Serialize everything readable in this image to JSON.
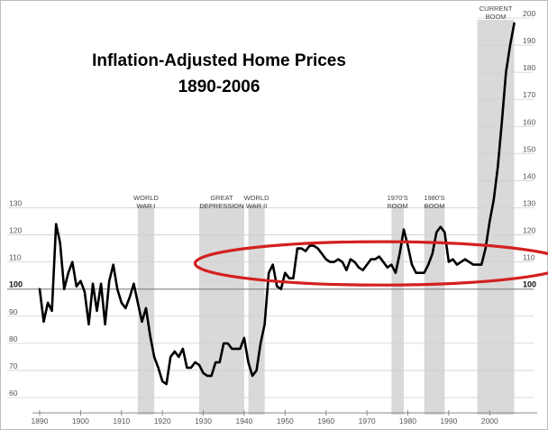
{
  "chart_data": {
    "type": "line",
    "title": "Inflation-Adjusted Home Prices",
    "subtitle": "1890-2006",
    "xlabel": "",
    "ylabel": "",
    "xlim": [
      1890,
      2006
    ],
    "ylim": [
      60,
      200
    ],
    "grid": true,
    "x_ticks": [
      1890,
      1900,
      1910,
      1920,
      1930,
      1940,
      1950,
      1960,
      1970,
      1980,
      1990,
      2000
    ],
    "y_ticks_left": [
      60,
      70,
      80,
      90,
      100,
      110,
      120,
      130
    ],
    "y_ticks_right": [
      100,
      110,
      120,
      130,
      140,
      150,
      160,
      170,
      180,
      190,
      200
    ],
    "baseline": 100,
    "highlight_ellipse": {
      "x_center": 1973.5,
      "y_center": 109.5,
      "x_halfwidth": 45.5,
      "y_halfwidth": 8
    },
    "periods": [
      {
        "label_lines": [
          "WORLD",
          "WAR I"
        ],
        "x0": 1914,
        "x1": 1918
      },
      {
        "label_lines": [
          "GREAT",
          "DEPRESSION"
        ],
        "x0": 1929,
        "x1": 1940
      },
      {
        "label_lines": [
          "WORLD",
          "WAR II"
        ],
        "x0": 1941,
        "x1": 1945
      },
      {
        "label_lines": [
          "1970'S",
          "BOOM"
        ],
        "x0": 1976,
        "x1": 1979
      },
      {
        "label_lines": [
          "1980'S",
          "BOOM"
        ],
        "x0": 1984,
        "x1": 1989
      },
      {
        "label_lines": [
          "CURRENT",
          "BOOM"
        ],
        "x0": 1997,
        "x1": 2006
      }
    ],
    "series": [
      {
        "x": [
          1890,
          1891,
          1892,
          1893,
          1894,
          1895,
          1896,
          1897,
          1898,
          1899,
          1900,
          1901,
          1902,
          1903,
          1904,
          1905,
          1906,
          1907,
          1908,
          1909,
          1910,
          1911,
          1912,
          1913,
          1914,
          1915,
          1916,
          1917,
          1918,
          1919,
          1920,
          1921,
          1922,
          1923,
          1924,
          1925,
          1926,
          1927,
          1928,
          1929,
          1930,
          1931,
          1932,
          1933,
          1934,
          1935,
          1936,
          1937,
          1938,
          1939,
          1940,
          1941,
          1942,
          1943,
          1944,
          1945,
          1946,
          1947,
          1948,
          1949,
          1950,
          1951,
          1952,
          1953,
          1954,
          1955,
          1956,
          1957,
          1958,
          1959,
          1960,
          1961,
          1962,
          1963,
          1964,
          1965,
          1966,
          1967,
          1968,
          1969,
          1970,
          1971,
          1972,
          1973,
          1974,
          1975,
          1976,
          1977,
          1978,
          1979,
          1980,
          1981,
          1982,
          1983,
          1984,
          1985,
          1986,
          1987,
          1988,
          1989,
          1990,
          1991,
          1992,
          1993,
          1994,
          1995,
          1996,
          1997,
          1998,
          1999,
          2000,
          2001,
          2002,
          2003,
          2004,
          2005,
          2006
        ],
        "values": [
          100,
          88,
          95,
          92,
          124,
          117,
          100,
          106,
          110,
          101,
          103,
          99,
          87,
          102,
          92,
          102,
          87,
          103,
          109,
          100,
          95,
          93,
          97,
          102,
          95,
          88,
          93,
          83,
          75,
          71,
          66,
          65,
          75,
          77,
          75,
          78,
          71,
          71,
          73,
          72,
          69,
          68,
          68,
          73,
          73,
          80,
          80,
          78,
          78,
          78,
          82,
          73,
          68,
          70,
          80,
          87,
          106,
          109,
          101,
          100,
          106,
          104,
          104,
          115,
          115,
          114,
          116,
          116,
          115,
          113,
          111,
          110,
          110,
          111,
          110,
          107,
          111,
          110,
          108,
          107,
          109,
          111,
          111,
          112,
          110,
          108,
          109,
          106,
          113,
          122,
          116,
          109,
          106,
          106,
          106,
          109,
          113,
          121,
          123,
          121,
          110,
          111,
          109,
          110,
          111,
          110,
          109,
          109,
          109,
          115,
          125,
          133,
          145,
          162,
          180,
          190,
          198
        ]
      }
    ]
  }
}
